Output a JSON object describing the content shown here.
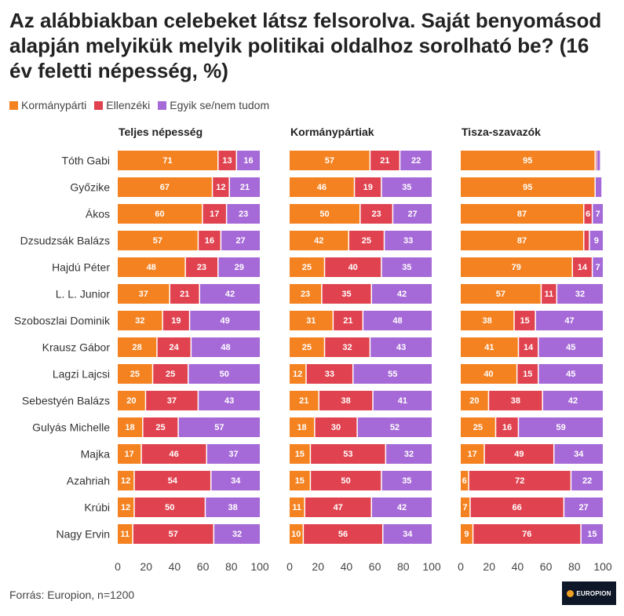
{
  "title": "Az alábbiakban celebeket látsz felsorolva. Saját benyomásod alapján melyikük melyik politikai oldalhoz sorolható be? (16 év feletti népesség, %)",
  "legend": [
    {
      "label": "Kormánypárti",
      "color": "#f58220"
    },
    {
      "label": "Ellenzéki",
      "color": "#e0434f"
    },
    {
      "label": "Egyik se/nem tudom",
      "color": "#a66ad8"
    }
  ],
  "source": "Forrás: Europion, n=1200",
  "logo": {
    "text": "EUROPION",
    "icon": "europion-logo-icon"
  },
  "chart_data": {
    "type": "bar",
    "orientation": "horizontal",
    "stacked": true,
    "categories": [
      "Tóth Gabi",
      "Győzike",
      "Ákos",
      "Dzsudzsák Balázs",
      "Hajdú Péter",
      "L. L. Junior",
      "Szoboszlai Dominik",
      "Krausz Gábor",
      "Lagzi Lajcsi",
      "Sebestyén Balázs",
      "Gulyás Michelle",
      "Majka",
      "Azahriah",
      "Krúbi",
      "Nagy Ervin"
    ],
    "xlim": [
      0,
      100
    ],
    "xticks": [
      0,
      20,
      40,
      60,
      80,
      100
    ],
    "series_names": [
      "Kormánypárti",
      "Ellenzéki",
      "Egyik se/nem tudom"
    ],
    "colors": [
      "#f58220",
      "#e0434f",
      "#a66ad8"
    ],
    "panels": [
      {
        "title": "Teljes népesség",
        "values": [
          [
            71,
            13,
            16
          ],
          [
            67,
            12,
            21
          ],
          [
            60,
            17,
            23
          ],
          [
            57,
            16,
            27
          ],
          [
            48,
            23,
            29
          ],
          [
            37,
            21,
            42
          ],
          [
            32,
            19,
            49
          ],
          [
            28,
            24,
            48
          ],
          [
            25,
            25,
            50
          ],
          [
            20,
            37,
            43
          ],
          [
            18,
            25,
            57
          ],
          [
            17,
            46,
            37
          ],
          [
            12,
            54,
            34
          ],
          [
            12,
            50,
            38
          ],
          [
            11,
            57,
            32
          ]
        ]
      },
      {
        "title": "Kormánypártiak",
        "values": [
          [
            57,
            21,
            22
          ],
          [
            46,
            19,
            35
          ],
          [
            50,
            23,
            27
          ],
          [
            42,
            25,
            33
          ],
          [
            25,
            40,
            35
          ],
          [
            23,
            35,
            42
          ],
          [
            31,
            21,
            48
          ],
          [
            25,
            32,
            43
          ],
          [
            12,
            33,
            55
          ],
          [
            21,
            38,
            41
          ],
          [
            18,
            30,
            52
          ],
          [
            15,
            53,
            32
          ],
          [
            15,
            50,
            35
          ],
          [
            11,
            47,
            42
          ],
          [
            10,
            56,
            34
          ]
        ]
      },
      {
        "title": "Tisza-szavazók",
        "values": [
          [
            95,
            1,
            2
          ],
          [
            95,
            0,
            4
          ],
          [
            87,
            6,
            7
          ],
          [
            87,
            4,
            9
          ],
          [
            79,
            14,
            7
          ],
          [
            57,
            11,
            32
          ],
          [
            38,
            15,
            47
          ],
          [
            41,
            14,
            45
          ],
          [
            40,
            15,
            45
          ],
          [
            20,
            38,
            42
          ],
          [
            25,
            16,
            59
          ],
          [
            17,
            49,
            34
          ],
          [
            6,
            72,
            22
          ],
          [
            7,
            66,
            27
          ],
          [
            9,
            76,
            15
          ]
        ],
        "labels": [
          [
            95,
            null,
            null
          ],
          [
            95,
            null,
            null
          ],
          [
            87,
            6,
            7
          ],
          [
            87,
            null,
            9
          ],
          [
            79,
            14,
            7
          ],
          [
            57,
            11,
            32
          ],
          [
            38,
            15,
            47
          ],
          [
            41,
            14,
            45
          ],
          [
            40,
            15,
            45
          ],
          [
            20,
            38,
            42
          ],
          [
            25,
            16,
            59
          ],
          [
            17,
            49,
            34
          ],
          [
            6,
            72,
            22
          ],
          [
            7,
            66,
            27
          ],
          [
            9,
            76,
            15
          ]
        ]
      }
    ]
  }
}
